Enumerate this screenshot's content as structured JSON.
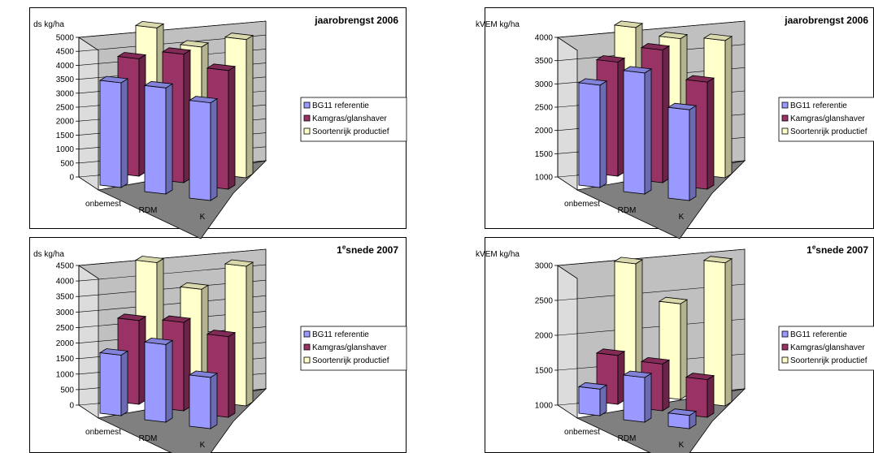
{
  "colors": {
    "series": [
      "#9999ff",
      "#993366",
      "#ffffcc"
    ],
    "wall": "#c0c0c0",
    "floor": "#808080"
  },
  "chart_data": [
    {
      "type": "bar",
      "title": "jaarobrengst 2006",
      "ylabel": "ds kg/ha",
      "categories": [
        "onbemest",
        "RDM",
        "K"
      ],
      "ylim": [
        0,
        5000
      ],
      "yticks": [
        "0",
        "500",
        "1000",
        "1500",
        "2000",
        "2500",
        "3000",
        "3500",
        "4000",
        "4500",
        "5000"
      ],
      "series": [
        {
          "name": "BG11 referentie",
          "values": [
            3750,
            3800,
            3500
          ]
        },
        {
          "name": "Kamgras/glanshaver",
          "values": [
            4200,
            4600,
            4250
          ]
        },
        {
          "name": "Soortenrijk productief",
          "values": [
            4900,
            4450,
            4950
          ]
        }
      ],
      "legend": "right",
      "grid": true
    },
    {
      "type": "bar",
      "title": "jaarobrengst 2006",
      "ylabel": "kVEM kg/ha",
      "categories": [
        "onbemest",
        "RDM",
        "K"
      ],
      "ylim": [
        1000,
        4000
      ],
      "yticks": [
        "1000",
        "1500",
        "2000",
        "2500",
        "3000",
        "3500",
        "4000"
      ],
      "series": [
        {
          "name": "BG11 referentie",
          "values": [
            3200,
            3600,
            2950
          ]
        },
        {
          "name": "Kamgras/glanshaver",
          "values": [
            3450,
            3850,
            3300
          ]
        },
        {
          "name": "Soortenrijk productief",
          "values": [
            3950,
            3850,
            3950
          ]
        }
      ],
      "legend": "right",
      "grid": true
    },
    {
      "type": "bar",
      "title": "1esnede 2007",
      "title_main": "1",
      "title_sup": "e",
      "title_rest": "snede 2007",
      "ylabel": "ds kg/ha",
      "categories": [
        "onbemest",
        "RDM",
        "K"
      ],
      "ylim": [
        0,
        4500
      ],
      "yticks": [
        "0",
        "500",
        "1000",
        "1500",
        "2000",
        "2500",
        "3000",
        "3500",
        "4000",
        "4500"
      ],
      "series": [
        {
          "name": "BG11 referentie",
          "values": [
            1950,
            2500,
            1650
          ]
        },
        {
          "name": "Kamgras/glanshaver",
          "values": [
            2700,
            2850,
            2600
          ]
        },
        {
          "name": "Soortenrijk productief",
          "values": [
            4200,
            3550,
            4500
          ]
        }
      ],
      "legend": "right",
      "grid": true
    },
    {
      "type": "bar",
      "title": "1esnede 2007",
      "title_main": "1",
      "title_sup": "e",
      "title_rest": "snede 2007",
      "ylabel": "kVEM kg/ha",
      "categories": [
        "onbemest",
        "RDM",
        "K"
      ],
      "ylim": [
        1000,
        3000
      ],
      "yticks": [
        "1000",
        "1500",
        "2000",
        "2500",
        "3000"
      ],
      "series": [
        {
          "name": "BG11 referentie",
          "values": [
            1380,
            1640,
            1190
          ]
        },
        {
          "name": "Kamgras/glanshaver",
          "values": [
            1700,
            1670,
            1540
          ]
        },
        {
          "name": "Soortenrijk productief",
          "values": [
            2850,
            2370,
            3050
          ]
        }
      ],
      "legend": "right",
      "grid": true
    }
  ]
}
